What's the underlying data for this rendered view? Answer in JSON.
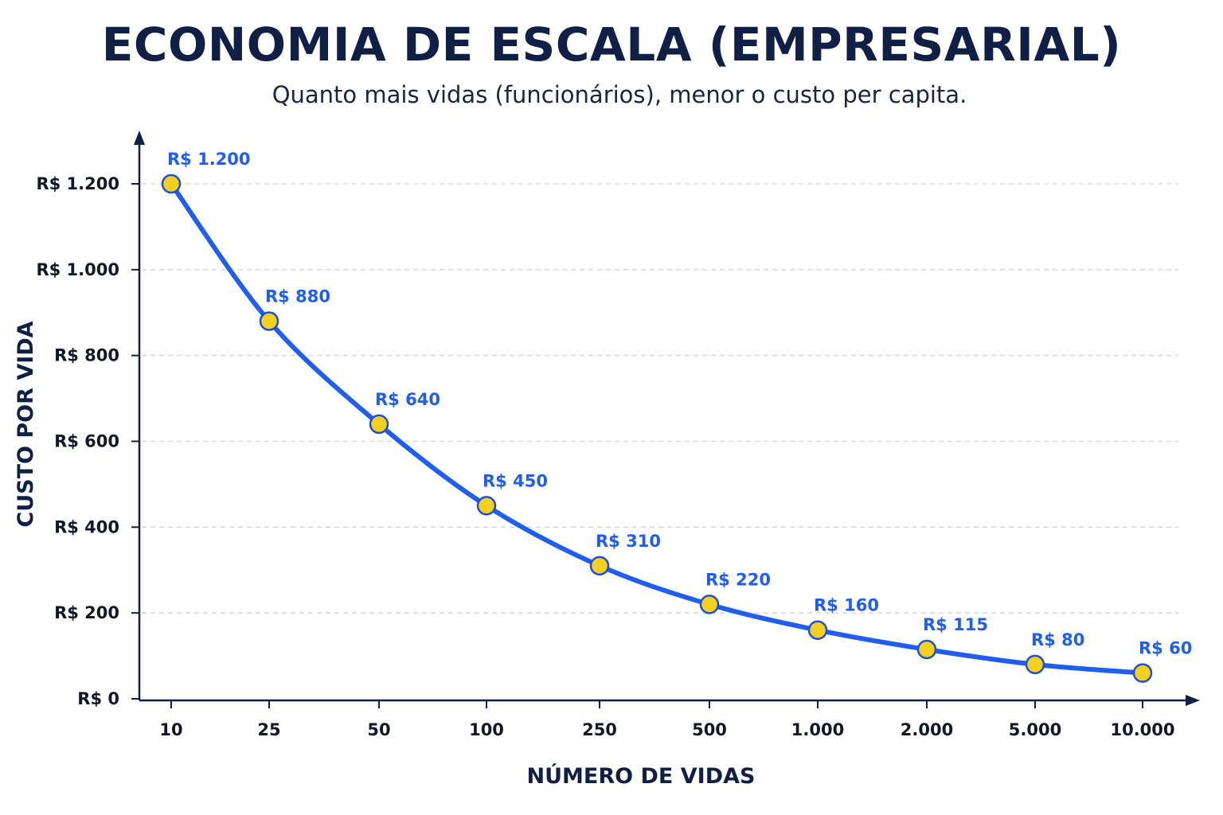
{
  "title": "ECONOMIA DE ESCALA (EMPRESARIAL)",
  "subtitle": "Quanto mais vidas (funcionários), menor o custo per capita.",
  "colors": {
    "line": "#1f5ef0",
    "point_fill": "#f5d11f",
    "point_stroke": "#1f4fd8",
    "label": "#1f5ef0",
    "grid": "#cfd3da",
    "axis": "#0f1f45"
  },
  "chart_data": {
    "type": "line",
    "xlabel": "NÚMERO DE VIDAS",
    "ylabel": "CUSTO POR VIDA",
    "categories": [
      "10",
      "25",
      "50",
      "100",
      "250",
      "500",
      "1.000",
      "2.000",
      "5.000",
      "10.000"
    ],
    "values": [
      1200,
      880,
      640,
      450,
      310,
      220,
      160,
      115,
      80,
      60
    ],
    "point_labels": [
      "R$ 1.200",
      "R$ 880",
      "R$ 640",
      "R$ 450",
      "R$ 310",
      "R$ 220",
      "R$ 160",
      "R$ 115",
      "R$ 80",
      "R$ 60"
    ],
    "yticks": [
      0,
      200,
      400,
      600,
      800,
      1000,
      1200
    ],
    "ytick_labels": [
      "R$ 0",
      "R$ 200",
      "R$ 400",
      "R$ 600",
      "R$ 800",
      "R$ 1.000",
      "R$ 1.200"
    ],
    "ylim": [
      0,
      1300
    ],
    "grid": "horizontal dashed",
    "legend": "none"
  }
}
